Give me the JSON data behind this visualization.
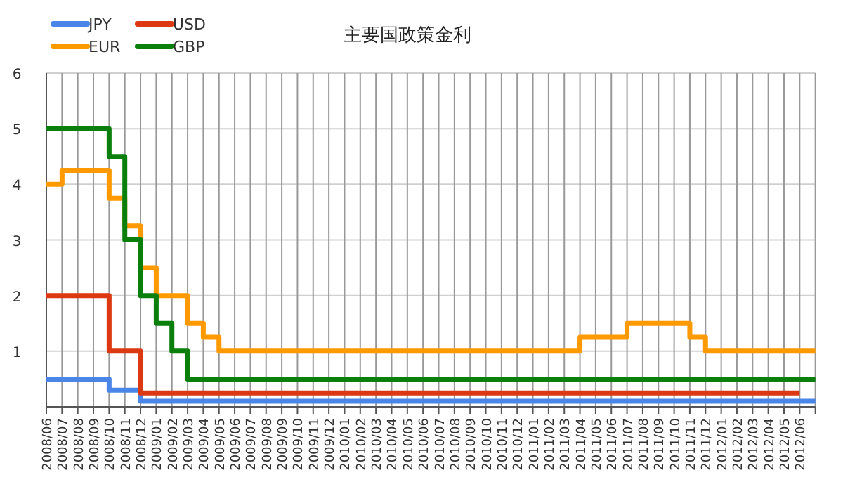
{
  "chart_data": {
    "type": "step",
    "title": "主要国政策金利",
    "categories": [
      "2008/06",
      "2008/07",
      "2008/08",
      "2008/09",
      "2008/10",
      "2008/11",
      "2008/12",
      "2009/01",
      "2009/02",
      "2009/03",
      "2009/04",
      "2009/05",
      "2009/06",
      "2009/07",
      "2009/08",
      "2009/09",
      "2009/10",
      "2009/11",
      "2009/12",
      "2010/01",
      "2010/02",
      "2010/03",
      "2010/04",
      "2010/05",
      "2010/06",
      "2010/07",
      "2010/08",
      "2010/09",
      "2010/10",
      "2010/11",
      "2010/12",
      "2011/01",
      "2011/02",
      "2011/03",
      "2011/04",
      "2011/05",
      "2011/06",
      "2011/07",
      "2011/08",
      "2011/09",
      "2011/10",
      "2011/11",
      "2011/12",
      "2012/01",
      "2012/02",
      "2012/03",
      "2012/04",
      "2012/05",
      "2012/06",
      null
    ],
    "series": [
      {
        "name": "JPY",
        "color": "#4a86e8",
        "values": [
          0.5,
          0.5,
          0.5,
          0.5,
          0.3,
          0.3,
          0.1,
          0.1,
          0.1,
          0.1,
          0.1,
          0.1,
          0.1,
          0.1,
          0.1,
          0.1,
          0.1,
          0.1,
          0.1,
          0.1,
          0.1,
          0.1,
          0.1,
          0.1,
          0.1,
          0.1,
          0.1,
          0.1,
          0.1,
          0.1,
          0.1,
          0.1,
          0.1,
          0.1,
          0.1,
          0.1,
          0.1,
          0.1,
          0.1,
          0.1,
          0.1,
          0.1,
          0.1,
          0.1,
          0.1,
          0.1,
          0.1,
          0.1,
          0.1,
          0.1
        ]
      },
      {
        "name": "USD",
        "color": "#dc3912",
        "values": [
          2,
          2,
          2,
          2,
          1,
          1,
          0.25,
          0.25,
          0.25,
          0.25,
          0.25,
          0.25,
          0.25,
          0.25,
          0.25,
          0.25,
          0.25,
          0.25,
          0.25,
          0.25,
          0.25,
          0.25,
          0.25,
          0.25,
          0.25,
          0.25,
          0.25,
          0.25,
          0.25,
          0.25,
          0.25,
          0.25,
          0.25,
          0.25,
          0.25,
          0.25,
          0.25,
          0.25,
          0.25,
          0.25,
          0.25,
          0.25,
          0.25,
          0.25,
          0.25,
          0.25,
          0.25,
          0.25,
          0.25,
          null
        ]
      },
      {
        "name": "EUR",
        "color": "#ff9900",
        "values": [
          4,
          4.25,
          4.25,
          4.25,
          3.75,
          3.25,
          2.5,
          2,
          2,
          1.5,
          1.25,
          1,
          1,
          1,
          1,
          1,
          1,
          1,
          1,
          1,
          1,
          1,
          1,
          1,
          1,
          1,
          1,
          1,
          1,
          1,
          1,
          1,
          1,
          1,
          1.25,
          1.25,
          1.25,
          1.5,
          1.5,
          1.5,
          1.5,
          1.25,
          1,
          1,
          1,
          1,
          1,
          1,
          1,
          1
        ]
      },
      {
        "name": "GBP",
        "color": "#0b7f0b",
        "values": [
          5,
          5,
          5,
          5,
          4.5,
          3,
          2,
          1.5,
          1,
          0.5,
          0.5,
          0.5,
          0.5,
          0.5,
          0.5,
          0.5,
          0.5,
          0.5,
          0.5,
          0.5,
          0.5,
          0.5,
          0.5,
          0.5,
          0.5,
          0.5,
          0.5,
          0.5,
          0.5,
          0.5,
          0.5,
          0.5,
          0.5,
          0.5,
          0.5,
          0.5,
          0.5,
          0.5,
          0.5,
          0.5,
          0.5,
          0.5,
          0.5,
          0.5,
          0.5,
          0.5,
          0.5,
          0.5,
          0.5,
          0.5
        ]
      }
    ],
    "ylim": [
      0,
      6
    ],
    "yticks": [
      {
        "value": 0,
        "label": null
      },
      1,
      2,
      3,
      4,
      5,
      6
    ],
    "grid": true,
    "legend": "top left"
  }
}
